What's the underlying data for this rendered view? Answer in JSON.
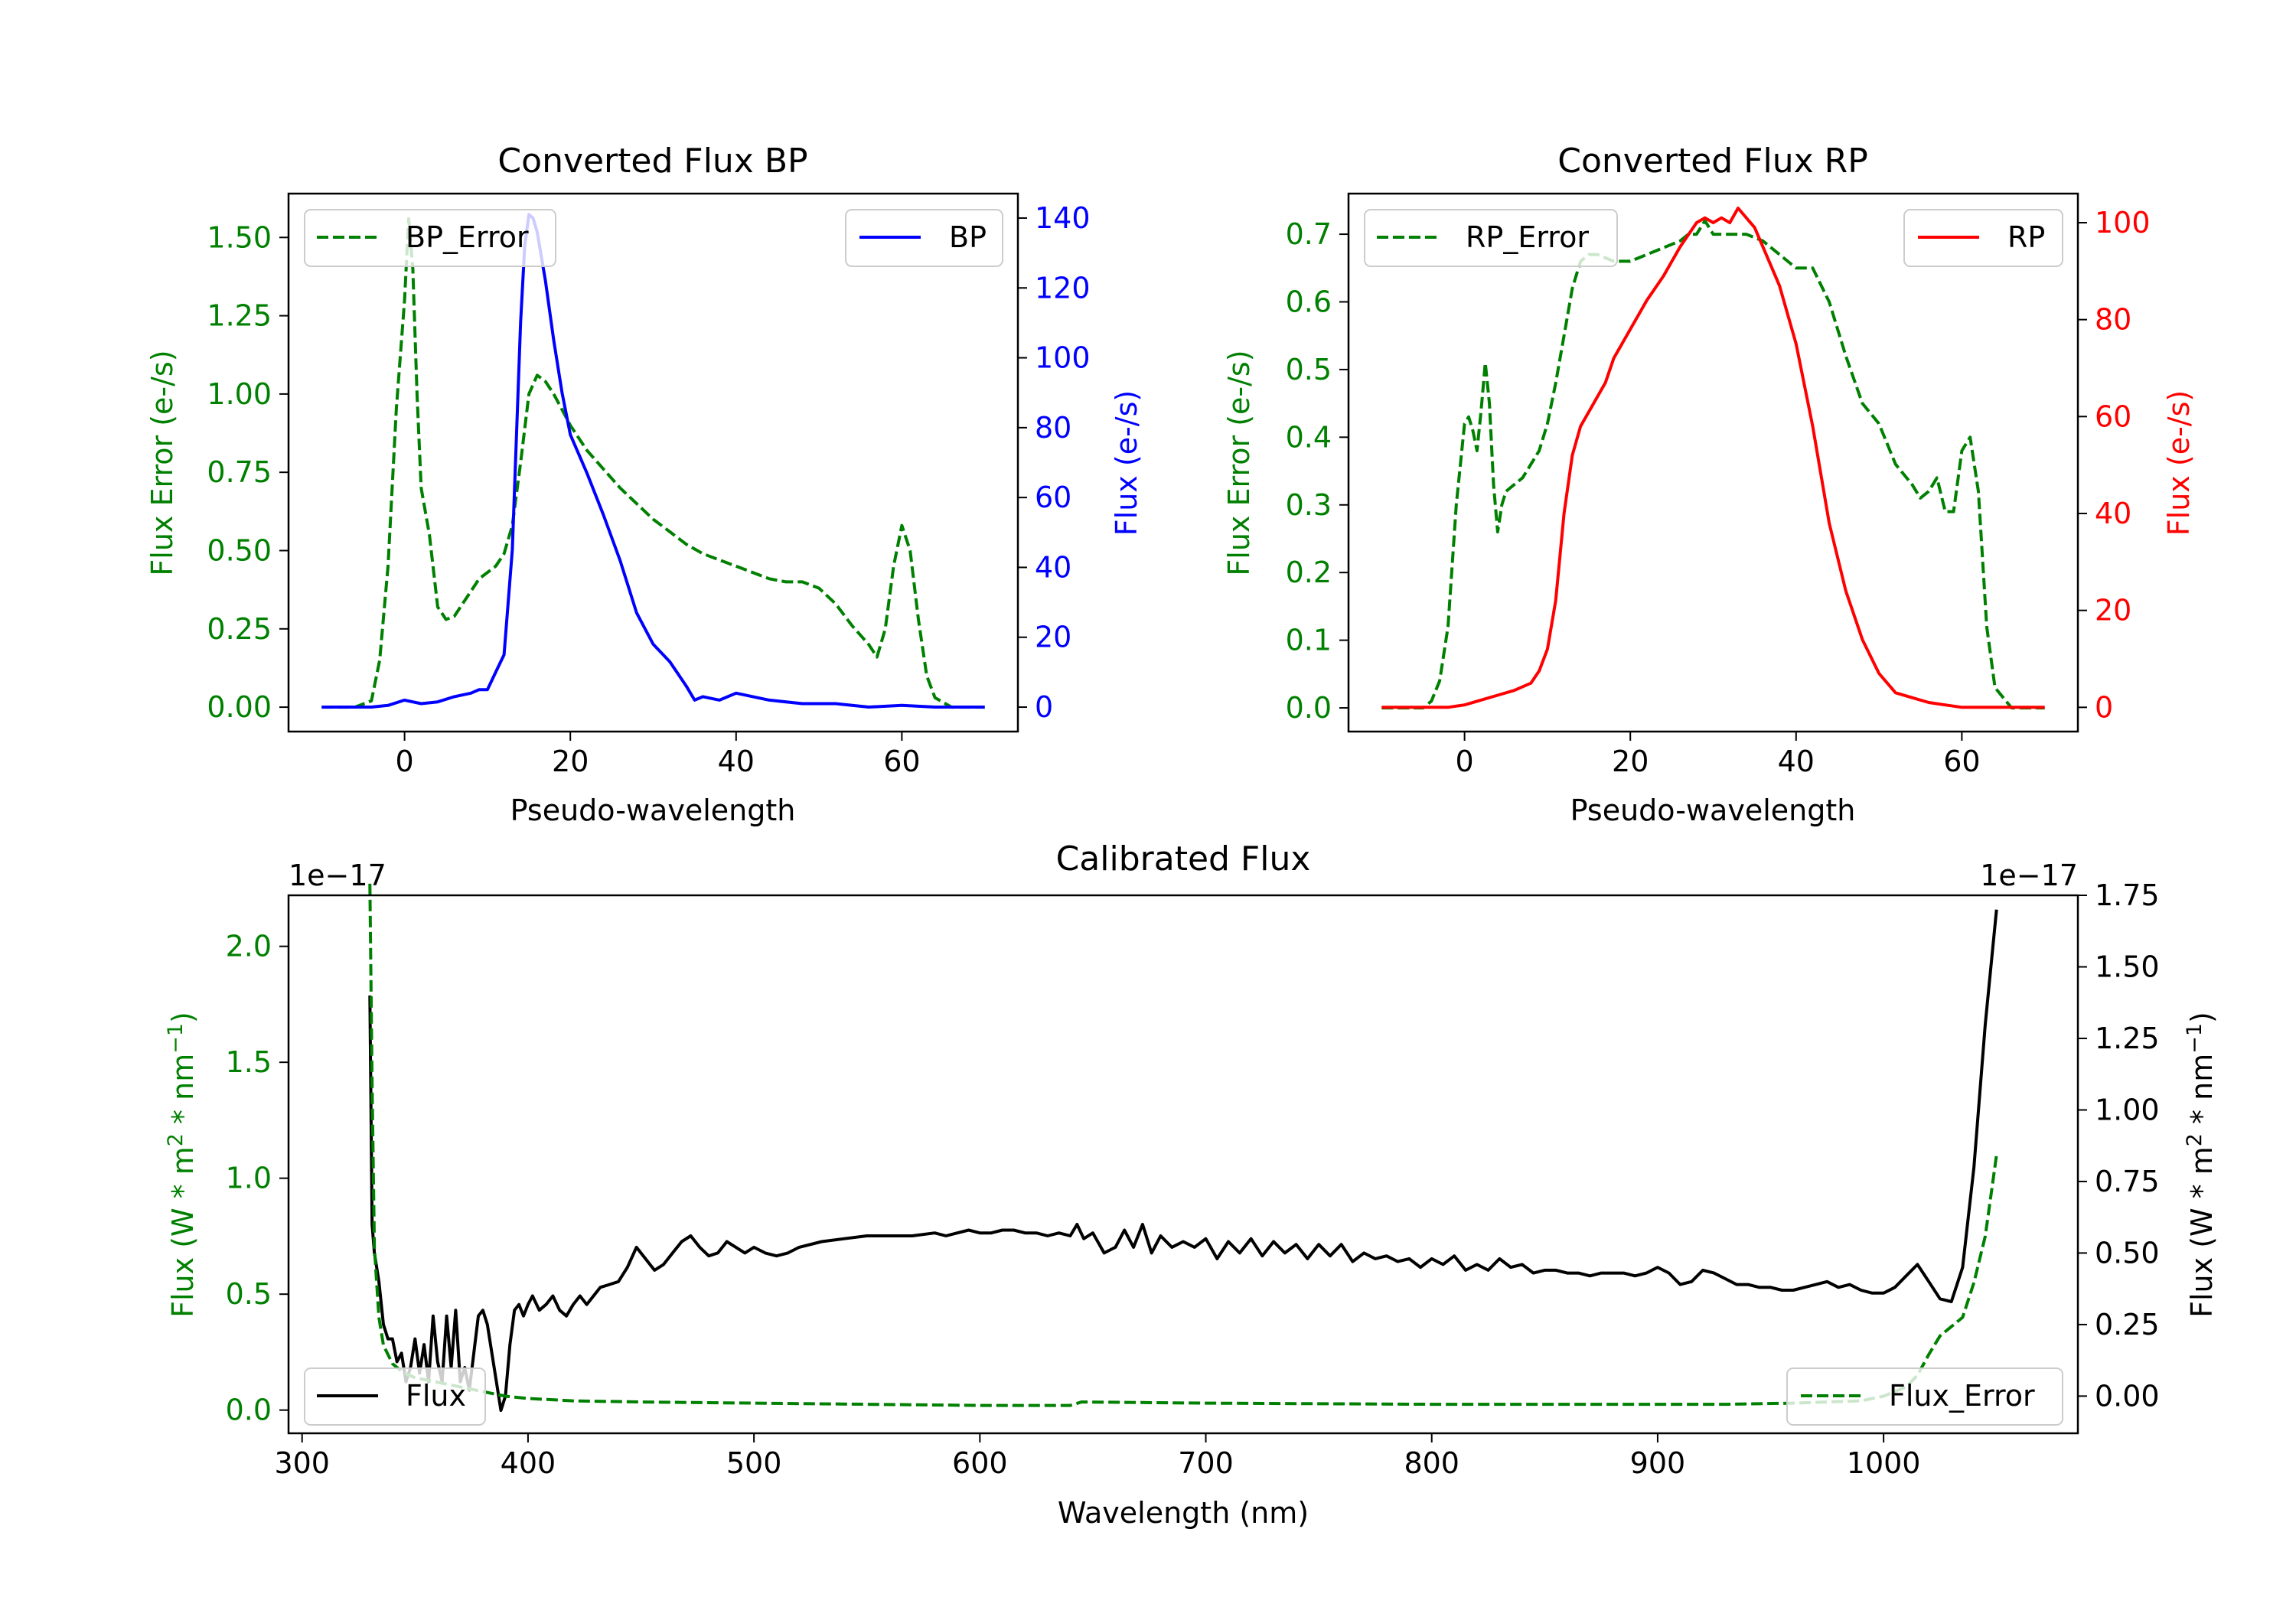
{
  "chart_data": [
    {
      "id": "bp",
      "type": "line",
      "title": "Converted Flux BP",
      "xlabel": "Pseudo-wavelength",
      "xlim": [
        -14,
        74
      ],
      "xticks": [
        0,
        20,
        40,
        60
      ],
      "left_axis": {
        "label": "Flux Error (e-/s)",
        "color": "#008000",
        "ylim": [
          -0.078,
          1.64
        ],
        "ticks": [
          0,
          0.25,
          0.5,
          0.75,
          1.0,
          1.25,
          1.5
        ],
        "tick_labels": [
          "0.00",
          "0.25",
          "0.50",
          "0.75",
          "1.00",
          "1.25",
          "1.50"
        ]
      },
      "right_axis": {
        "label": "Flux (e-/s)",
        "color": "#0000ff",
        "ylim": [
          -7,
          147
        ],
        "ticks": [
          0,
          20,
          40,
          60,
          80,
          100,
          120,
          140
        ],
        "tick_labels": [
          "0",
          "20",
          "40",
          "60",
          "80",
          "100",
          "120",
          "140"
        ]
      },
      "legend_left": {
        "label": "BP_Error",
        "position": "upper left"
      },
      "legend_right": {
        "label": "BP",
        "position": "upper right"
      },
      "series": [
        {
          "name": "BP_Error",
          "axis": "left",
          "style": "dashed",
          "color": "#008000",
          "x": [
            -10,
            -6,
            -4,
            -3,
            -2,
            -1,
            0,
            0.5,
            1,
            1.5,
            2,
            3,
            4,
            5,
            6,
            7,
            8,
            9,
            10,
            11,
            12,
            13,
            14,
            15,
            16,
            17,
            18,
            19,
            20,
            22,
            24,
            26,
            28,
            30,
            32,
            34,
            36,
            38,
            40,
            42,
            44,
            46,
            48,
            50,
            52,
            54,
            56,
            57,
            58,
            59,
            60,
            61,
            62,
            63,
            64,
            66,
            70
          ],
          "y": [
            0,
            0,
            0.02,
            0.15,
            0.45,
            0.95,
            1.3,
            1.56,
            1.4,
            1.0,
            0.7,
            0.55,
            0.32,
            0.28,
            0.29,
            0.33,
            0.37,
            0.41,
            0.43,
            0.45,
            0.49,
            0.58,
            0.78,
            1.0,
            1.06,
            1.04,
            1.0,
            0.95,
            0.9,
            0.82,
            0.76,
            0.7,
            0.65,
            0.6,
            0.56,
            0.52,
            0.49,
            0.47,
            0.45,
            0.43,
            0.41,
            0.4,
            0.4,
            0.38,
            0.33,
            0.26,
            0.2,
            0.16,
            0.25,
            0.45,
            0.58,
            0.5,
            0.28,
            0.1,
            0.03,
            0,
            0
          ]
        },
        {
          "name": "BP",
          "axis": "right",
          "style": "solid",
          "color": "#0000ff",
          "x": [
            -10,
            -4,
            -2,
            0,
            2,
            4,
            6,
            8,
            9,
            10,
            11,
            12,
            13,
            14,
            14.5,
            15,
            15.5,
            16,
            17,
            18,
            19,
            20,
            22,
            24,
            26,
            28,
            30,
            32,
            34,
            35,
            36,
            38,
            40,
            44,
            48,
            52,
            56,
            60,
            64,
            70
          ],
          "y": [
            0,
            0,
            0.5,
            2,
            1,
            1.5,
            3,
            4,
            5,
            5,
            10,
            15,
            45,
            110,
            132,
            141,
            140,
            136,
            122,
            105,
            90,
            78,
            67,
            55,
            42,
            27,
            18,
            13,
            6,
            2,
            3,
            2,
            4,
            2,
            1,
            1,
            0,
            0.5,
            0,
            0
          ]
        }
      ]
    },
    {
      "id": "rp",
      "type": "line",
      "title": "Converted Flux RP",
      "xlabel": "Pseudo-wavelength",
      "xlim": [
        -14,
        74
      ],
      "xticks": [
        0,
        20,
        40,
        60
      ],
      "left_axis": {
        "label": "Flux Error (e-/s)",
        "color": "#008000",
        "ylim": [
          -0.035,
          0.76
        ],
        "ticks": [
          0,
          0.1,
          0.2,
          0.3,
          0.4,
          0.5,
          0.6,
          0.7
        ],
        "tick_labels": [
          "0.0",
          "0.1",
          "0.2",
          "0.3",
          "0.4",
          "0.5",
          "0.6",
          "0.7"
        ]
      },
      "right_axis": {
        "label": "Flux (e-/s)",
        "color": "#ff0000",
        "ylim": [
          -5,
          106
        ],
        "ticks": [
          0,
          20,
          40,
          60,
          80,
          100
        ],
        "tick_labels": [
          "0",
          "20",
          "40",
          "60",
          "80",
          "100"
        ]
      },
      "legend_left": {
        "label": "RP_Error",
        "position": "upper left"
      },
      "legend_right": {
        "label": "RP",
        "position": "upper right"
      },
      "series": [
        {
          "name": "RP_Error",
          "axis": "left",
          "style": "dashed",
          "color": "#008000",
          "x": [
            -10,
            -5,
            -4,
            -3,
            -2,
            -1,
            0,
            0.5,
            1,
            1.5,
            2,
            2.5,
            3,
            3.5,
            4,
            4.5,
            5,
            6,
            7,
            8,
            9,
            10,
            11,
            12,
            13,
            14,
            15,
            16,
            18,
            20,
            22,
            24,
            26,
            27,
            28,
            29,
            30,
            32,
            34,
            36,
            38,
            40,
            42,
            44,
            46,
            48,
            50,
            52,
            54,
            55,
            56,
            57,
            58,
            59,
            60,
            61,
            62,
            63,
            64,
            66,
            70
          ],
          "y": [
            0,
            0,
            0.01,
            0.04,
            0.12,
            0.3,
            0.42,
            0.43,
            0.41,
            0.38,
            0.44,
            0.51,
            0.45,
            0.33,
            0.26,
            0.3,
            0.32,
            0.33,
            0.34,
            0.36,
            0.38,
            0.42,
            0.48,
            0.55,
            0.62,
            0.66,
            0.67,
            0.67,
            0.66,
            0.66,
            0.67,
            0.68,
            0.69,
            0.7,
            0.7,
            0.72,
            0.7,
            0.7,
            0.7,
            0.69,
            0.67,
            0.65,
            0.65,
            0.6,
            0.52,
            0.45,
            0.42,
            0.36,
            0.33,
            0.31,
            0.32,
            0.34,
            0.29,
            0.29,
            0.38,
            0.4,
            0.32,
            0.12,
            0.03,
            0,
            0
          ]
        },
        {
          "name": "RP",
          "axis": "right",
          "style": "solid",
          "color": "#ff0000",
          "x": [
            -10,
            -2,
            0,
            2,
            4,
            6,
            8,
            9,
            10,
            11,
            12,
            13,
            14,
            15,
            16,
            17,
            18,
            20,
            22,
            24,
            26,
            28,
            29,
            30,
            31,
            32,
            33,
            34,
            35,
            36,
            38,
            40,
            42,
            44,
            46,
            48,
            50,
            52,
            54,
            56,
            58,
            60,
            64,
            70
          ],
          "y": [
            0,
            0,
            0.5,
            1.5,
            2.5,
            3.5,
            5,
            7.5,
            12,
            22,
            40,
            52,
            58,
            61,
            64,
            67,
            72,
            78,
            84,
            89,
            95,
            100,
            101,
            100,
            101,
            100,
            103,
            101,
            99,
            95,
            87,
            75,
            58,
            38,
            24,
            14,
            7,
            3,
            2,
            1,
            0.5,
            0,
            0,
            0
          ]
        }
      ]
    },
    {
      "id": "cal",
      "type": "line",
      "title": "Calibrated Flux",
      "xlabel": "Wavelength (nm)",
      "xlim": [
        294,
        1086
      ],
      "xticks": [
        300,
        400,
        500,
        600,
        700,
        800,
        900,
        1000
      ],
      "left_axis": {
        "label_prefix": "Flux (W * m",
        "label_mid": " * nm",
        "label_suffix": ")",
        "sup1": "2",
        "sup2": "−1",
        "color": "#008000",
        "ylim": [
          -0.1,
          2.22
        ],
        "ticks": [
          0,
          0.5,
          1.0,
          1.5,
          2.0
        ],
        "tick_labels": [
          "0.0",
          "0.5",
          "1.0",
          "1.5",
          "2.0"
        ],
        "offset_text": "1e−17"
      },
      "right_axis": {
        "label_prefix": "Flux (W * m",
        "label_mid": " * nm",
        "label_suffix": ")",
        "sup1": "2",
        "sup2": "−1",
        "color": "#000000",
        "ylim": [
          -0.13,
          1.75
        ],
        "ticks": [
          0,
          0.25,
          0.5,
          0.75,
          1.0,
          1.25,
          1.5,
          1.75
        ],
        "tick_labels": [
          "0.00",
          "0.25",
          "0.50",
          "0.75",
          "1.00",
          "1.25",
          "1.50",
          "1.75"
        ],
        "offset_text": "1e−17"
      },
      "legend_left": {
        "label": "Flux",
        "position": "lower left"
      },
      "legend_right": {
        "label": "Flux_Error",
        "position": "lower right"
      },
      "series": [
        {
          "name": "Flux",
          "axis": "right",
          "style": "solid",
          "color": "#000000",
          "x": [
            330,
            331,
            332,
            334,
            336,
            338,
            340,
            342,
            344,
            346,
            348,
            350,
            352,
            354,
            356,
            358,
            360,
            362,
            364,
            366,
            368,
            370,
            372,
            374,
            376,
            378,
            380,
            382,
            384,
            386,
            388,
            390,
            392,
            394,
            396,
            398,
            400,
            402,
            405,
            408,
            411,
            414,
            417,
            420,
            423,
            426,
            429,
            432,
            436,
            440,
            444,
            448,
            452,
            456,
            460,
            464,
            468,
            472,
            476,
            480,
            484,
            488,
            492,
            496,
            500,
            505,
            510,
            515,
            520,
            530,
            540,
            550,
            560,
            570,
            580,
            585,
            590,
            595,
            600,
            605,
            610,
            615,
            620,
            625,
            630,
            635,
            640,
            643,
            646,
            650,
            655,
            660,
            664,
            668,
            672,
            676,
            680,
            685,
            690,
            695,
            700,
            705,
            710,
            715,
            720,
            725,
            730,
            735,
            740,
            745,
            750,
            755,
            760,
            765,
            770,
            775,
            780,
            785,
            790,
            795,
            800,
            805,
            810,
            815,
            820,
            825,
            830,
            835,
            840,
            845,
            850,
            855,
            860,
            865,
            870,
            875,
            880,
            885,
            890,
            895,
            900,
            905,
            910,
            915,
            920,
            925,
            930,
            935,
            940,
            945,
            950,
            955,
            960,
            965,
            970,
            975,
            980,
            985,
            990,
            995,
            1000,
            1005,
            1010,
            1015,
            1020,
            1025,
            1030,
            1035,
            1040,
            1045,
            1050
          ],
          "y": [
            1.4,
            0.6,
            0.5,
            0.4,
            0.25,
            0.2,
            0.2,
            0.12,
            0.15,
            0.05,
            0.1,
            0.2,
            0.08,
            0.18,
            0.05,
            0.28,
            0.12,
            0.05,
            0.28,
            0.1,
            0.3,
            0.05,
            0.1,
            0.02,
            0.15,
            0.28,
            0.3,
            0.25,
            0.15,
            0.05,
            -0.05,
            0.0,
            0.18,
            0.3,
            0.32,
            0.28,
            0.32,
            0.35,
            0.3,
            0.32,
            0.35,
            0.3,
            0.28,
            0.32,
            0.35,
            0.32,
            0.35,
            0.38,
            0.39,
            0.4,
            0.45,
            0.52,
            0.48,
            0.44,
            0.46,
            0.5,
            0.54,
            0.56,
            0.52,
            0.49,
            0.5,
            0.54,
            0.52,
            0.5,
            0.52,
            0.5,
            0.49,
            0.5,
            0.52,
            0.54,
            0.55,
            0.56,
            0.56,
            0.56,
            0.57,
            0.56,
            0.57,
            0.58,
            0.57,
            0.57,
            0.58,
            0.58,
            0.57,
            0.57,
            0.56,
            0.57,
            0.56,
            0.6,
            0.55,
            0.57,
            0.5,
            0.52,
            0.58,
            0.52,
            0.6,
            0.5,
            0.56,
            0.52,
            0.54,
            0.52,
            0.55,
            0.48,
            0.54,
            0.5,
            0.55,
            0.49,
            0.54,
            0.5,
            0.53,
            0.48,
            0.53,
            0.49,
            0.53,
            0.47,
            0.5,
            0.48,
            0.49,
            0.47,
            0.48,
            0.45,
            0.48,
            0.46,
            0.49,
            0.44,
            0.46,
            0.44,
            0.48,
            0.45,
            0.46,
            0.43,
            0.44,
            0.44,
            0.43,
            0.43,
            0.42,
            0.43,
            0.43,
            0.43,
            0.42,
            0.43,
            0.45,
            0.43,
            0.39,
            0.4,
            0.44,
            0.43,
            0.41,
            0.39,
            0.39,
            0.38,
            0.38,
            0.37,
            0.37,
            0.38,
            0.39,
            0.4,
            0.38,
            0.39,
            0.37,
            0.36,
            0.36,
            0.38,
            0.42,
            0.46,
            0.4,
            0.34,
            0.33,
            0.45,
            0.8,
            1.3,
            1.7
          ]
        },
        {
          "name": "Flux_Error",
          "axis": "left",
          "style": "dashed",
          "color": "#008000",
          "x": [
            330,
            331,
            332,
            334,
            336,
            340,
            345,
            350,
            360,
            370,
            380,
            390,
            400,
            420,
            450,
            500,
            600,
            635,
            640,
            645,
            700,
            800,
            900,
            930,
            960,
            990,
            1000,
            1010,
            1015,
            1020,
            1025,
            1030,
            1035,
            1040,
            1045,
            1050
          ],
          "y": [
            2.27,
            1.4,
            0.7,
            0.4,
            0.28,
            0.2,
            0.16,
            0.14,
            0.12,
            0.1,
            0.08,
            0.06,
            0.05,
            0.04,
            0.035,
            0.03,
            0.02,
            0.02,
            0.02,
            0.035,
            0.03,
            0.025,
            0.025,
            0.025,
            0.03,
            0.04,
            0.06,
            0.1,
            0.15,
            0.24,
            0.32,
            0.36,
            0.4,
            0.55,
            0.75,
            1.1
          ]
        }
      ]
    }
  ]
}
